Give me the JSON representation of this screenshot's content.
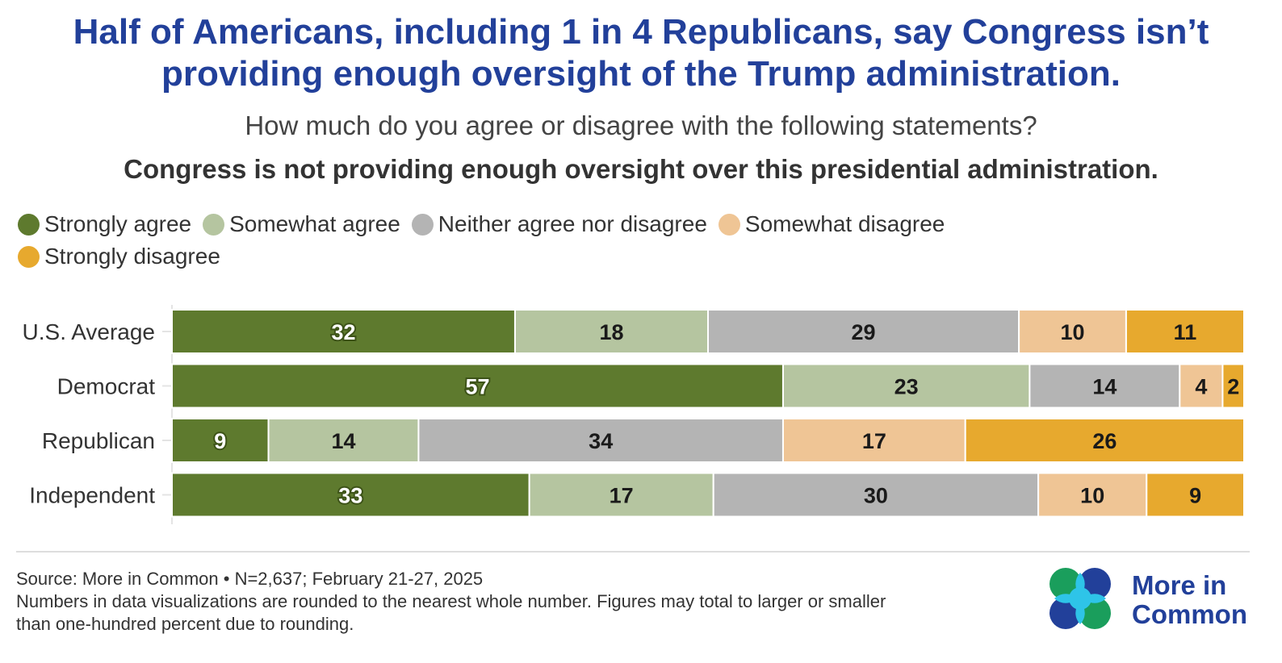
{
  "title": "Half of Americans, including 1 in 4 Republicans, say Congress isn’t providing enough oversight of the Trump administration.",
  "subtitle": "How much do you agree or disagree with the following statements?",
  "statement": "Congress is not providing enough oversight over this presidential administration.",
  "colors": {
    "title": "#22409a",
    "strongly_agree": "#5e7a2e",
    "somewhat_agree": "#b5c5a0",
    "neither": "#b4b4b4",
    "somewhat_disagree": "#efc595",
    "strongly_disagree": "#e7a92e"
  },
  "chart_data": {
    "type": "bar",
    "orientation": "horizontal",
    "stacked": true,
    "categories": [
      "U.S. Average",
      "Democrat",
      "Republican",
      "Independent"
    ],
    "series": [
      {
        "name": "Strongly agree",
        "color": "#5e7a2e",
        "values": [
          32,
          57,
          9,
          33
        ]
      },
      {
        "name": "Somewhat agree",
        "color": "#b5c5a0",
        "values": [
          18,
          23,
          14,
          17
        ]
      },
      {
        "name": "Neither agree nor disagree",
        "color": "#b4b4b4",
        "values": [
          29,
          14,
          34,
          30
        ]
      },
      {
        "name": "Somewhat disagree",
        "color": "#efc595",
        "values": [
          10,
          4,
          17,
          10
        ]
      },
      {
        "name": "Strongly disagree",
        "color": "#e7a92e",
        "values": [
          11,
          2,
          26,
          9
        ]
      }
    ],
    "legend_position": "top-left",
    "grid": false
  },
  "footer": {
    "source": "Source: More in Common • N=2,637; February 21-27, 2025",
    "note": "Numbers in data visualizations are rounded to the nearest whole number. Figures may total to larger or smaller than one-hundred percent due to rounding."
  },
  "logo": {
    "line1": "More in",
    "line2": "Common",
    "colors": [
      "#1a9e5c",
      "#22409a",
      "#2ec4e8"
    ]
  }
}
